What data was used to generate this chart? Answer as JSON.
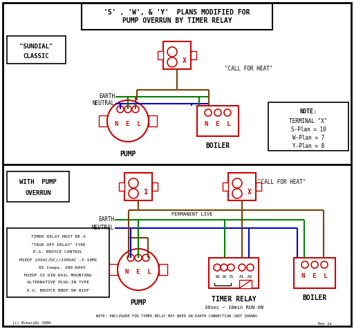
{
  "title_line1": "'S' , 'W', & 'Y'  PLANS MODIFIED FOR",
  "title_line2": "PUMP OVERRUN BY TIMER RELAY",
  "bg_color": "#ffffff",
  "border_color": "#000000",
  "red": "#cc0000",
  "green": "#008000",
  "blue": "#0000cc",
  "brown": "#7B3F00",
  "label_sundial1": "\"SUNDIAL\"",
  "label_sundial2": "CLASSIC",
  "label_with_pump1": "WITH  PUMP",
  "label_with_pump2": "OVERRUN",
  "note_text1": "NOTE:",
  "note_text2": "TERMINAL \"X\"",
  "note_text3": "S-Plan = 10",
  "note_text4": "W-Plan = 7",
  "note_text5": "Y-Plan = 8",
  "timer_note": "NOTE: ENCLOSURE FOR TIMER RELAY MAY NEED AN EARTH CONNECTION (NOT SHOWN)",
  "timer_warn1": "TIMER RELAY MUST BE A",
  "timer_warn2": "\"TRUE OFF DELAY\" TYPE",
  "timer_warn3": "E.G. BROYCE CONTROL",
  "timer_warn4": "M1EDF 24VAC/DC//230VAC .5-10MI",
  "timer_warn5": "   RS Comps. 300-6045",
  "timer_warn6": "M1EDF IS DIN RAIL MOUNTING",
  "timer_warn7": "ALTERNATIVE PLUG-IN TYPE",
  "timer_warn8": "E.G. BROYCE B8DF OR B1DF",
  "rev_text": "Rev 1a",
  "copyright_text": "(c) BinaryDc 2009"
}
